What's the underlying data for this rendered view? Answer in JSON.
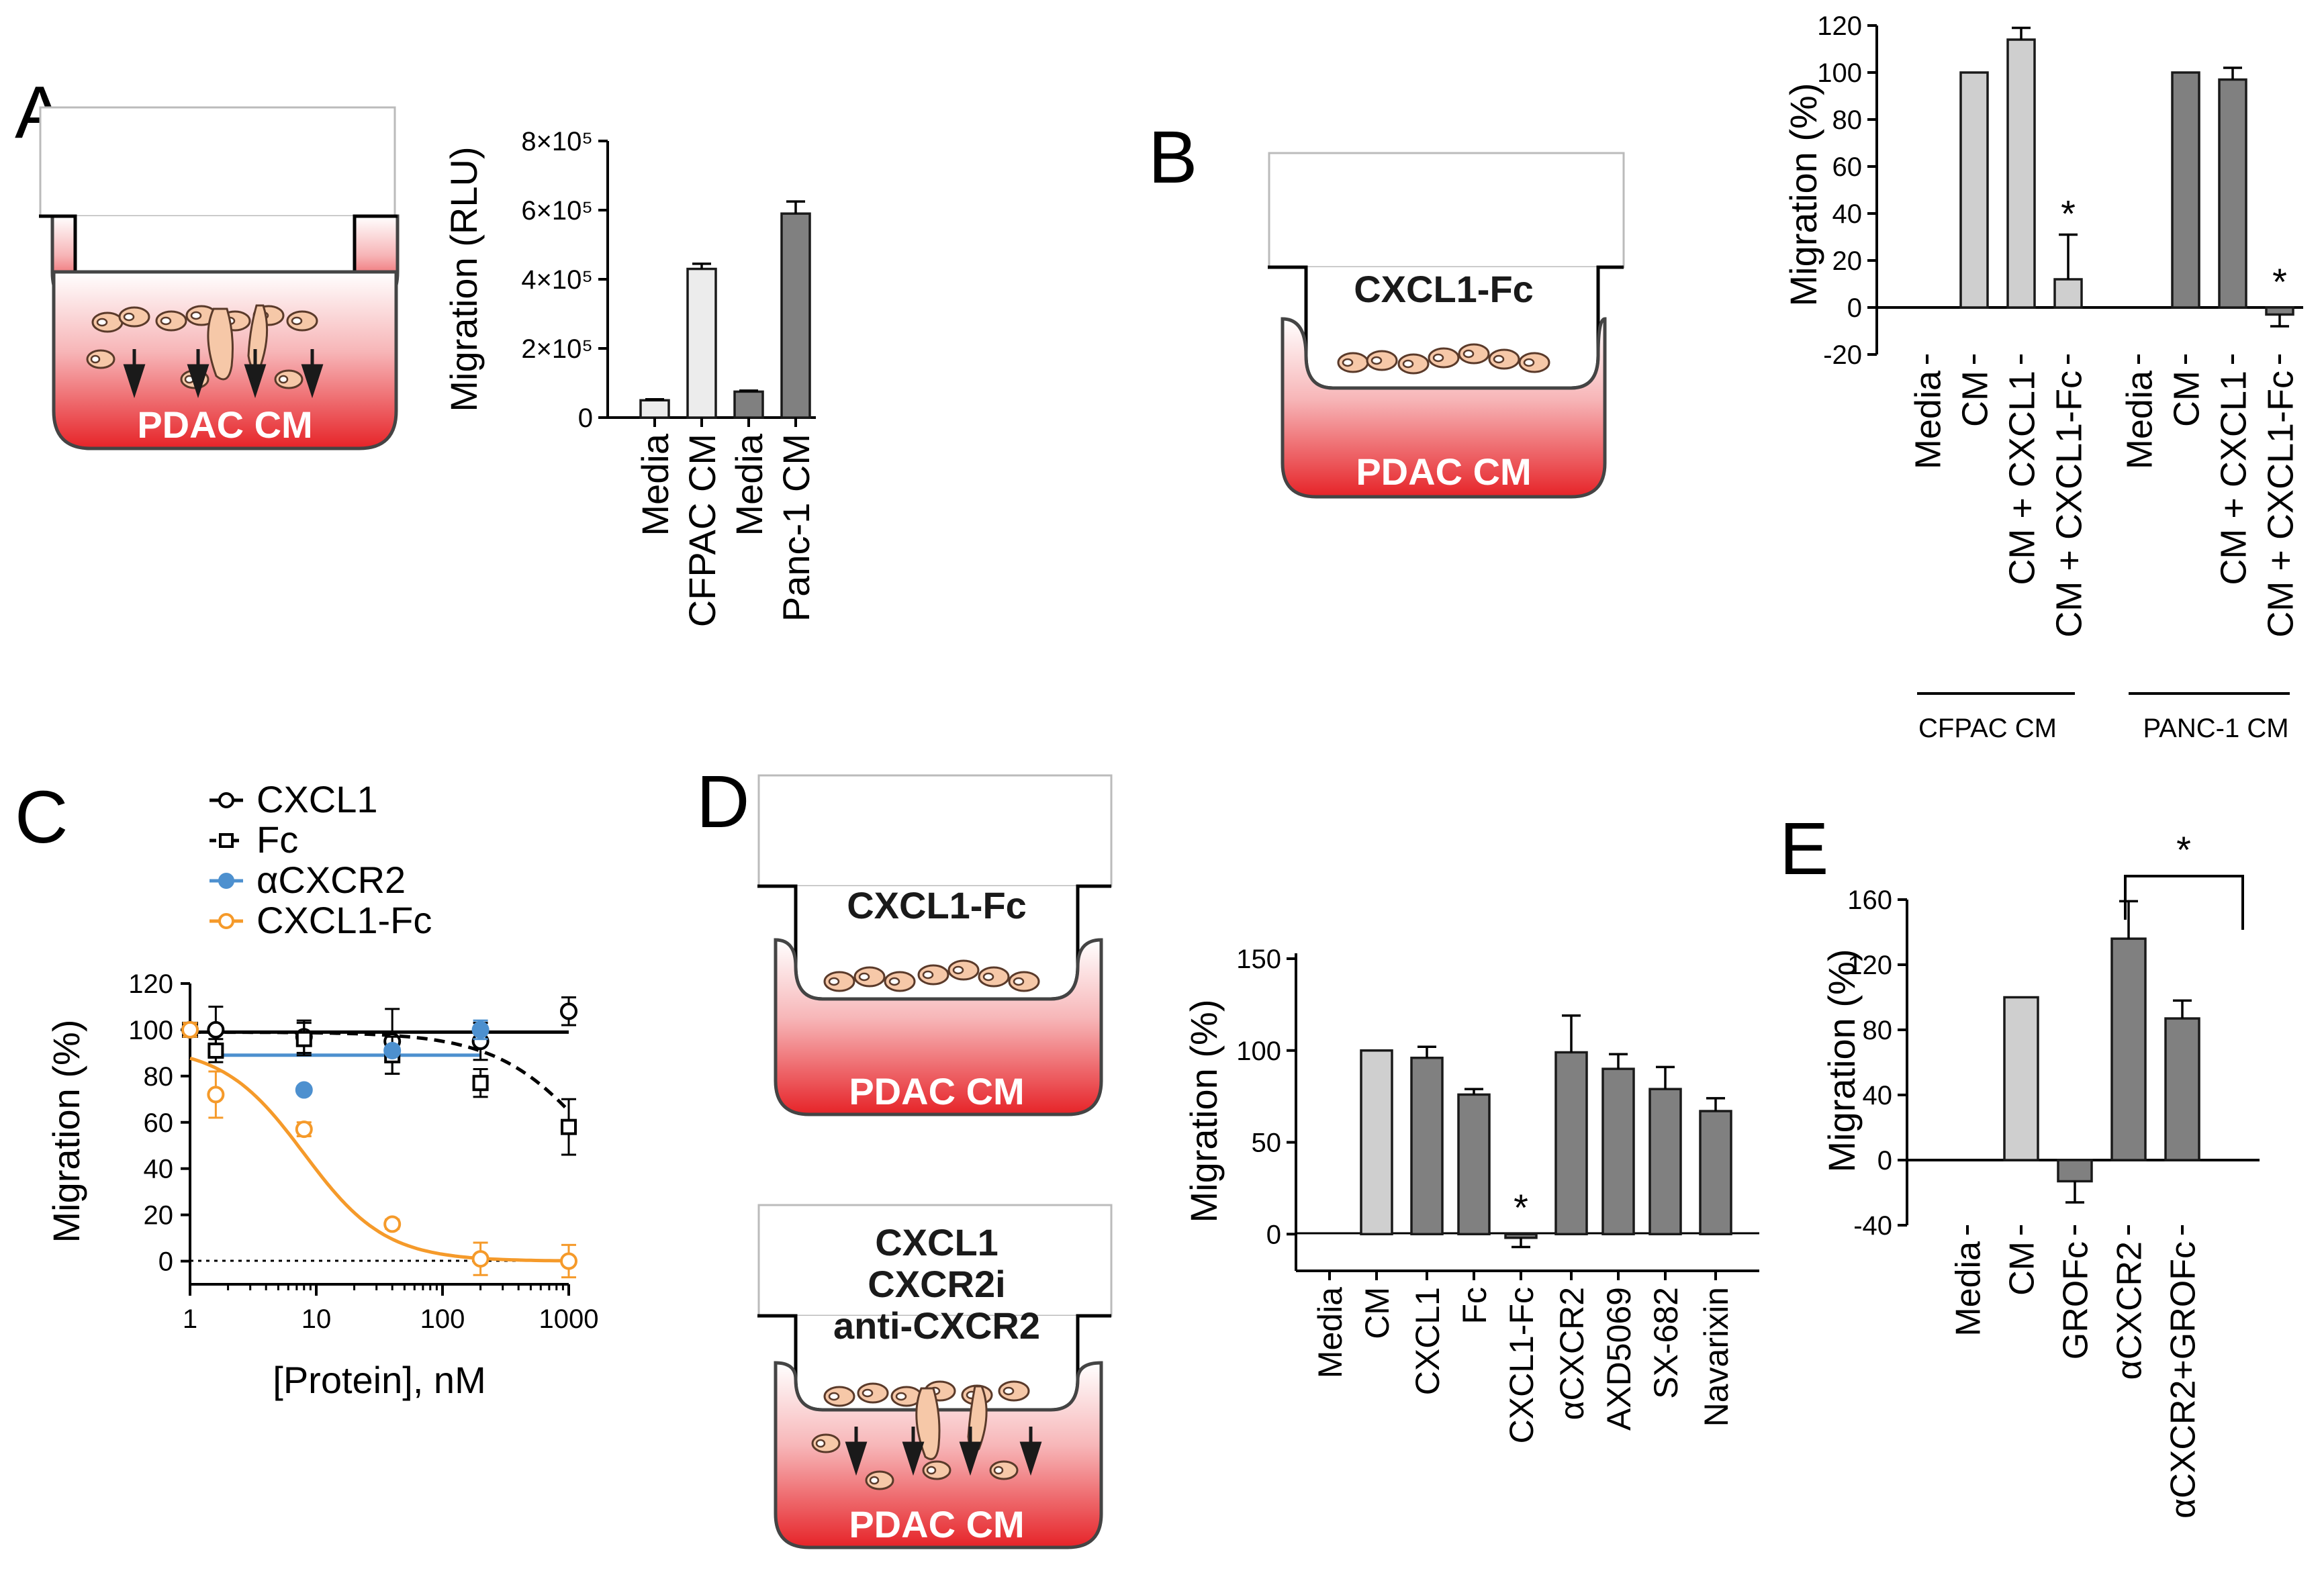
{
  "panels": {
    "A": "A",
    "B": "B",
    "C": "C",
    "D": "D",
    "E": "E"
  },
  "wells": {
    "a_bottom": "PDAC CM",
    "b_top": "CXCL1-Fc",
    "b_bottom": "PDAC CM",
    "d1_top": "CXCL1-Fc",
    "d1_bottom": "PDAC CM",
    "d2_line1": "CXCL1",
    "d2_line2": "CXCR2i",
    "d2_line3": "anti-CXCR2",
    "d2_bottom": "PDAC CM"
  },
  "colors": {
    "light": "#cfcfcf",
    "lighter": "#ececec",
    "dark": "#808080",
    "blue": "#4d90cf",
    "orange": "#f59a2a"
  },
  "chart_data": [
    {
      "id": "A",
      "type": "bar",
      "ylabel": "Migration (RLU)",
      "ylim": [
        0,
        800000
      ],
      "yticks": [
        "0",
        "2×10⁵",
        "4×10⁵",
        "6×10⁵",
        "8×10⁵"
      ],
      "categories": [
        "Media",
        "CFPAC CM",
        "Media",
        "Panc-1 CM"
      ],
      "values": [
        50000,
        430000,
        75000,
        590000
      ],
      "errors": [
        3000,
        15000,
        3000,
        35000
      ]
    },
    {
      "id": "B",
      "type": "bar",
      "ylabel": "Migration (%)",
      "ylim": [
        -20,
        120
      ],
      "yticks": [
        "-20",
        "0",
        "20",
        "40",
        "60",
        "80",
        "100",
        "120"
      ],
      "categories": [
        "Media",
        "CM",
        "CM + CXCL1",
        "CM + CXCL1-Fc",
        "Media",
        "CM",
        "CM + CXCL1",
        "CM + CXCL1-Fc"
      ],
      "values": [
        0,
        100,
        114,
        12,
        0,
        100,
        97,
        -3
      ],
      "errors": [
        0,
        0,
        5,
        19,
        0,
        0,
        5,
        5
      ],
      "annotations": [
        "*",
        "*"
      ],
      "groups": [
        "CFPAC CM",
        "PANC-1 CM"
      ]
    },
    {
      "id": "C",
      "type": "line",
      "xlabel": "[Protein], nM",
      "ylabel": "Migration (%)",
      "xscale": "log",
      "xlim": [
        1,
        1000
      ],
      "ylim": [
        -10,
        120
      ],
      "xticks": [
        "1",
        "10",
        "100",
        "1000"
      ],
      "yticks": [
        "0",
        "20",
        "40",
        "60",
        "80",
        "100",
        "120"
      ],
      "series": [
        {
          "name": "CXCL1",
          "x": [
            1,
            1.6,
            8,
            40,
            200,
            1000
          ],
          "y": [
            100,
            100,
            97,
            95,
            95,
            108
          ],
          "err": [
            3,
            10,
            7,
            14,
            8,
            6
          ]
        },
        {
          "name": "Fc",
          "x": [
            1,
            1.6,
            8,
            40,
            200,
            1000
          ],
          "y": [
            100,
            91,
            96,
            89,
            77,
            58
          ],
          "err": [
            3,
            5,
            7,
            8,
            6,
            12
          ]
        },
        {
          "name": "αCXCR2",
          "x": [
            1,
            8,
            40,
            200
          ],
          "y": [
            100,
            74,
            91,
            100
          ],
          "err": [
            0,
            0,
            0,
            4
          ]
        },
        {
          "name": "CXCL1-Fc",
          "x": [
            1,
            1.6,
            8,
            40,
            200,
            1000
          ],
          "y": [
            100,
            72,
            57,
            16,
            1,
            0
          ],
          "err": [
            3,
            10,
            3,
            2,
            7,
            7
          ]
        }
      ]
    },
    {
      "id": "D",
      "type": "bar",
      "ylabel": "Migration (%)",
      "ylim": [
        -20,
        150
      ],
      "yticks": [
        "0",
        "50",
        "100",
        "150"
      ],
      "categories": [
        "Media",
        "CM",
        "CXCL1",
        "Fc",
        "CXCL1-Fc",
        "αCXCR2",
        "AXD5069",
        "SX-682",
        "Navarixin"
      ],
      "values": [
        0,
        100,
        96,
        76,
        -2,
        99,
        90,
        79,
        67
      ],
      "errors": [
        0,
        0,
        6,
        3,
        5,
        20,
        8,
        12,
        7
      ],
      "annotations": [
        "*"
      ]
    },
    {
      "id": "E",
      "type": "bar",
      "ylabel": "Migration (%)",
      "ylim": [
        -40,
        160
      ],
      "yticks": [
        "-40",
        "0",
        "40",
        "80",
        "120",
        "160"
      ],
      "categories": [
        "Media",
        "CM",
        "GROFc",
        "αCXCR2",
        "αCXCR2+GROFc"
      ],
      "values": [
        0,
        100,
        -13,
        136,
        87
      ],
      "errors": [
        0,
        0,
        13,
        23,
        11
      ],
      "annotations": [
        "*"
      ]
    }
  ]
}
